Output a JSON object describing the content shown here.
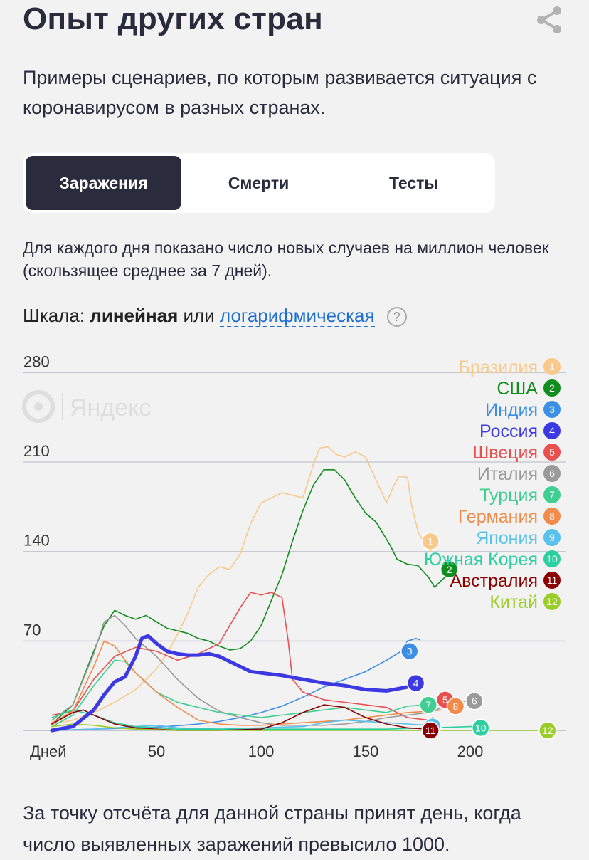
{
  "header": {
    "title": "Опыт других стран",
    "subtitle": "Примеры сценариев, по которым развивается ситуация с коронавирусом в разных странах.",
    "share_icon": "share-icon"
  },
  "tabs": [
    {
      "label": "Заражения",
      "active": true
    },
    {
      "label": "Смерти",
      "active": false
    },
    {
      "label": "Тесты",
      "active": false
    }
  ],
  "note": "Для каждого дня показано число новых случаев на миллион человек (скользящее среднее за 7 дней).",
  "scale": {
    "prefix": "Шкала:",
    "linear": "линейная",
    "or": "или",
    "log": "логарифмическая",
    "help": "?"
  },
  "watermark": "Яндекс",
  "footer": "За точку отсчёта для данной страны принят день, когда число выявленных заражений превысило 1000.",
  "chart_data": {
    "type": "line",
    "xlabel": "Дней",
    "x_ticks": [
      50,
      100,
      150,
      200
    ],
    "y_ticks": [
      70,
      140,
      210,
      280
    ],
    "xlim": [
      0,
      240
    ],
    "ylim": [
      0,
      280
    ],
    "legend_position": "top-right",
    "series": [
      {
        "id": 1,
        "name": "Бразилия",
        "color": "#f9c98a",
        "width": 1.6,
        "points": [
          [
            0,
            5
          ],
          [
            10,
            8
          ],
          [
            20,
            14
          ],
          [
            30,
            22
          ],
          [
            40,
            32
          ],
          [
            50,
            48
          ],
          [
            55,
            60
          ],
          [
            60,
            75
          ],
          [
            65,
            92
          ],
          [
            70,
            112
          ],
          [
            75,
            122
          ],
          [
            80,
            128
          ],
          [
            85,
            126
          ],
          [
            90,
            138
          ],
          [
            95,
            162
          ],
          [
            100,
            178
          ],
          [
            105,
            182
          ],
          [
            110,
            186
          ],
          [
            115,
            184
          ],
          [
            120,
            182
          ],
          [
            125,
            208
          ],
          [
            128,
            221
          ],
          [
            132,
            222
          ],
          [
            136,
            216
          ],
          [
            140,
            214
          ],
          [
            145,
            218
          ],
          [
            150,
            214
          ],
          [
            155,
            196
          ],
          [
            160,
            178
          ],
          [
            163,
            190
          ],
          [
            166,
            199
          ],
          [
            170,
            198
          ],
          [
            172,
            176
          ],
          [
            175,
            156
          ],
          [
            178,
            146
          ],
          [
            181,
            140
          ],
          [
            182,
            144
          ]
        ]
      },
      {
        "id": 2,
        "name": "США",
        "color": "#118c1e",
        "width": 1.6,
        "points": [
          [
            0,
            5
          ],
          [
            10,
            20
          ],
          [
            20,
            62
          ],
          [
            25,
            82
          ],
          [
            30,
            94
          ],
          [
            35,
            90
          ],
          [
            40,
            87
          ],
          [
            45,
            90
          ],
          [
            50,
            85
          ],
          [
            55,
            80
          ],
          [
            60,
            78
          ],
          [
            65,
            76
          ],
          [
            70,
            72
          ],
          [
            75,
            70
          ],
          [
            80,
            66
          ],
          [
            85,
            63
          ],
          [
            90,
            64
          ],
          [
            95,
            70
          ],
          [
            100,
            82
          ],
          [
            105,
            102
          ],
          [
            110,
            122
          ],
          [
            115,
            148
          ],
          [
            120,
            172
          ],
          [
            125,
            192
          ],
          [
            130,
            204
          ],
          [
            135,
            204
          ],
          [
            140,
            196
          ],
          [
            145,
            182
          ],
          [
            150,
            170
          ],
          [
            155,
            163
          ],
          [
            158,
            155
          ],
          [
            162,
            144
          ],
          [
            165,
            134
          ],
          [
            170,
            130
          ],
          [
            175,
            129
          ],
          [
            180,
            120
          ],
          [
            183,
            112
          ],
          [
            186,
            117
          ],
          [
            190,
            123
          ],
          [
            192,
            122
          ]
        ]
      },
      {
        "id": 3,
        "name": "Индия",
        "color": "#3d8fe6",
        "width": 1.6,
        "points": [
          [
            0,
            0
          ],
          [
            20,
            1
          ],
          [
            40,
            2
          ],
          [
            55,
            3
          ],
          [
            70,
            5
          ],
          [
            80,
            7
          ],
          [
            90,
            10
          ],
          [
            100,
            14
          ],
          [
            110,
            19
          ],
          [
            120,
            26
          ],
          [
            130,
            34
          ],
          [
            140,
            40
          ],
          [
            150,
            46
          ],
          [
            160,
            55
          ],
          [
            167,
            62
          ],
          [
            170,
            70
          ],
          [
            174,
            72
          ],
          [
            176,
            71
          ]
        ]
      },
      {
        "id": 4,
        "name": "Россия",
        "color": "#3c39e3",
        "width": 5,
        "points": [
          [
            0,
            0
          ],
          [
            10,
            3
          ],
          [
            20,
            16
          ],
          [
            25,
            28
          ],
          [
            30,
            38
          ],
          [
            35,
            42
          ],
          [
            40,
            58
          ],
          [
            43,
            72
          ],
          [
            46,
            74
          ],
          [
            50,
            68
          ],
          [
            55,
            62
          ],
          [
            60,
            60
          ],
          [
            65,
            59
          ],
          [
            70,
            59
          ],
          [
            75,
            60
          ],
          [
            80,
            58
          ],
          [
            85,
            54
          ],
          [
            90,
            50
          ],
          [
            95,
            46
          ],
          [
            100,
            45
          ],
          [
            110,
            43
          ],
          [
            120,
            40
          ],
          [
            130,
            37
          ],
          [
            140,
            35
          ],
          [
            150,
            32
          ],
          [
            160,
            31
          ],
          [
            170,
            34
          ],
          [
            174,
            36
          ]
        ]
      },
      {
        "id": 5,
        "name": "Швеция",
        "color": "#e8504f",
        "width": 1.6,
        "points": [
          [
            0,
            12
          ],
          [
            10,
            15
          ],
          [
            20,
            40
          ],
          [
            30,
            58
          ],
          [
            40,
            65
          ],
          [
            50,
            62
          ],
          [
            60,
            55
          ],
          [
            70,
            60
          ],
          [
            80,
            68
          ],
          [
            85,
            82
          ],
          [
            90,
            96
          ],
          [
            95,
            108
          ],
          [
            100,
            106
          ],
          [
            105,
            108
          ],
          [
            110,
            104
          ],
          [
            113,
            70
          ],
          [
            115,
            40
          ],
          [
            120,
            30
          ],
          [
            130,
            24
          ],
          [
            140,
            22
          ],
          [
            150,
            20
          ],
          [
            160,
            18
          ],
          [
            170,
            10
          ],
          [
            180,
            8
          ],
          [
            182,
            10
          ]
        ]
      },
      {
        "id": 6,
        "name": "Италия",
        "color": "#9a9a9a",
        "width": 1.6,
        "points": [
          [
            0,
            8
          ],
          [
            10,
            20
          ],
          [
            20,
            60
          ],
          [
            25,
            85
          ],
          [
            30,
            90
          ],
          [
            35,
            82
          ],
          [
            40,
            72
          ],
          [
            50,
            58
          ],
          [
            60,
            40
          ],
          [
            70,
            25
          ],
          [
            80,
            15
          ],
          [
            90,
            10
          ],
          [
            100,
            6
          ],
          [
            110,
            4
          ],
          [
            120,
            4
          ],
          [
            130,
            4
          ],
          [
            140,
            5
          ],
          [
            150,
            7
          ],
          [
            160,
            10
          ],
          [
            170,
            12
          ],
          [
            180,
            14
          ],
          [
            190,
            20
          ],
          [
            198,
            23
          ]
        ]
      },
      {
        "id": 7,
        "name": "Турция",
        "color": "#3fcf92",
        "width": 1.6,
        "points": [
          [
            0,
            3
          ],
          [
            10,
            12
          ],
          [
            20,
            35
          ],
          [
            30,
            55
          ],
          [
            35,
            54
          ],
          [
            40,
            45
          ],
          [
            50,
            30
          ],
          [
            60,
            22
          ],
          [
            70,
            18
          ],
          [
            80,
            14
          ],
          [
            90,
            12
          ],
          [
            100,
            10
          ],
          [
            110,
            12
          ],
          [
            120,
            14
          ],
          [
            130,
            16
          ],
          [
            140,
            18
          ],
          [
            150,
            16
          ],
          [
            160,
            14
          ],
          [
            170,
            19
          ],
          [
            178,
            20
          ],
          [
            180,
            21
          ]
        ]
      },
      {
        "id": 8,
        "name": "Германия",
        "color": "#f28a4a",
        "width": 1.6,
        "points": [
          [
            0,
            6
          ],
          [
            10,
            15
          ],
          [
            20,
            50
          ],
          [
            25,
            70
          ],
          [
            30,
            66
          ],
          [
            35,
            55
          ],
          [
            40,
            45
          ],
          [
            50,
            30
          ],
          [
            60,
            18
          ],
          [
            70,
            8
          ],
          [
            80,
            5
          ],
          [
            90,
            4
          ],
          [
            100,
            4
          ],
          [
            110,
            5
          ],
          [
            120,
            6
          ],
          [
            130,
            7
          ],
          [
            140,
            8
          ],
          [
            150,
            10
          ],
          [
            160,
            12
          ],
          [
            170,
            14
          ],
          [
            180,
            15
          ],
          [
            186,
            16
          ]
        ]
      },
      {
        "id": 9,
        "name": "Япония",
        "color": "#58c1ec",
        "width": 1.6,
        "points": [
          [
            0,
            0
          ],
          [
            20,
            1
          ],
          [
            40,
            3
          ],
          [
            50,
            4
          ],
          [
            60,
            2
          ],
          [
            80,
            1
          ],
          [
            100,
            2
          ],
          [
            120,
            3
          ],
          [
            130,
            6
          ],
          [
            140,
            8
          ],
          [
            150,
            7
          ],
          [
            160,
            6
          ],
          [
            170,
            5
          ],
          [
            180,
            4
          ]
        ]
      },
      {
        "id": 10,
        "name": "Южная Корея",
        "color": "#2dcfa0",
        "width": 1.6,
        "points": [
          [
            0,
            10
          ],
          [
            10,
            16
          ],
          [
            20,
            12
          ],
          [
            30,
            6
          ],
          [
            40,
            3
          ],
          [
            60,
            1
          ],
          [
            80,
            1
          ],
          [
            100,
            1
          ],
          [
            120,
            1
          ],
          [
            140,
            1
          ],
          [
            160,
            1
          ],
          [
            180,
            2
          ],
          [
            200,
            3
          ],
          [
            206,
            3
          ]
        ]
      },
      {
        "id": 11,
        "name": "Австралия",
        "color": "#8b0000",
        "width": 1.6,
        "points": [
          [
            0,
            5
          ],
          [
            10,
            14
          ],
          [
            15,
            16
          ],
          [
            20,
            12
          ],
          [
            30,
            5
          ],
          [
            40,
            2
          ],
          [
            60,
            0
          ],
          [
            80,
            0
          ],
          [
            100,
            1
          ],
          [
            110,
            6
          ],
          [
            120,
            14
          ],
          [
            130,
            20
          ],
          [
            140,
            18
          ],
          [
            150,
            10
          ],
          [
            160,
            5
          ],
          [
            170,
            2
          ],
          [
            180,
            1
          ]
        ]
      },
      {
        "id": 12,
        "name": "Китай",
        "color": "#9acd2a",
        "width": 1.6,
        "points": [
          [
            0,
            3
          ],
          [
            10,
            5
          ],
          [
            20,
            4
          ],
          [
            30,
            2
          ],
          [
            40,
            1
          ],
          [
            60,
            0
          ],
          [
            100,
            0
          ],
          [
            150,
            0
          ],
          [
            200,
            0
          ],
          [
            240,
            0
          ]
        ]
      }
    ],
    "end_marker_positions": [
      {
        "id": 1,
        "x": 181,
        "y": 148
      },
      {
        "id": 2,
        "x": 190,
        "y": 126
      },
      {
        "id": 3,
        "x": 171,
        "y": 62
      },
      {
        "id": 4,
        "x": 174,
        "y": 37
      },
      {
        "id": 5,
        "x": 188,
        "y": 24
      },
      {
        "id": 6,
        "x": 202,
        "y": 23
      },
      {
        "id": 7,
        "x": 180,
        "y": 20
      },
      {
        "id": 8,
        "x": 193,
        "y": 19
      },
      {
        "id": 9,
        "x": 182,
        "y": 3
      },
      {
        "id": 10,
        "x": 205,
        "y": 2
      },
      {
        "id": 11,
        "x": 181,
        "y": 0
      },
      {
        "id": 12,
        "x": 237,
        "y": 0
      }
    ]
  }
}
